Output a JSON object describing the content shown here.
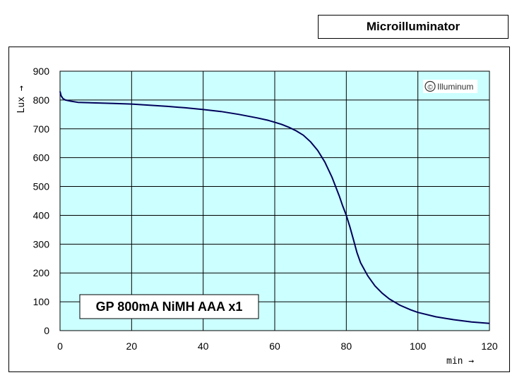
{
  "chart_data": {
    "type": "line",
    "title": "Microilluminator",
    "xlabel": "min →",
    "ylabel": "Lux →",
    "xlim": [
      0,
      120
    ],
    "ylim": [
      0,
      900
    ],
    "xticks": [
      0,
      20,
      40,
      60,
      80,
      100,
      120
    ],
    "yticks": [
      0,
      100,
      200,
      300,
      400,
      500,
      600,
      700,
      800,
      900
    ],
    "grid": true,
    "legend_label": "GP 800mA NiMH AAA x1",
    "watermark": "Illuminum",
    "watermark_symbol": "©",
    "series": [
      {
        "name": "GP 800mA NiMH AAA x1",
        "color": "#00005a",
        "x": [
          0,
          0.3,
          0.8,
          1.5,
          3,
          5,
          10,
          15,
          20,
          25,
          30,
          35,
          40,
          45,
          50,
          55,
          58,
          60,
          62,
          64,
          66,
          68,
          70,
          72,
          74,
          76,
          78,
          79,
          80,
          81,
          82,
          83,
          84,
          86,
          88,
          90,
          92,
          95,
          98,
          100,
          105,
          110,
          115,
          120
        ],
        "y": [
          830,
          815,
          805,
          800,
          796,
          792,
          790,
          788,
          786,
          782,
          778,
          773,
          767,
          760,
          750,
          738,
          730,
          723,
          715,
          705,
          693,
          678,
          655,
          625,
          585,
          532,
          468,
          432,
          400,
          360,
          315,
          270,
          235,
          190,
          155,
          130,
          110,
          88,
          72,
          63,
          48,
          38,
          30,
          25
        ]
      }
    ],
    "colors": {
      "plot_background": "#ccffff",
      "grid": "#000000",
      "line": "#00005a"
    }
  }
}
